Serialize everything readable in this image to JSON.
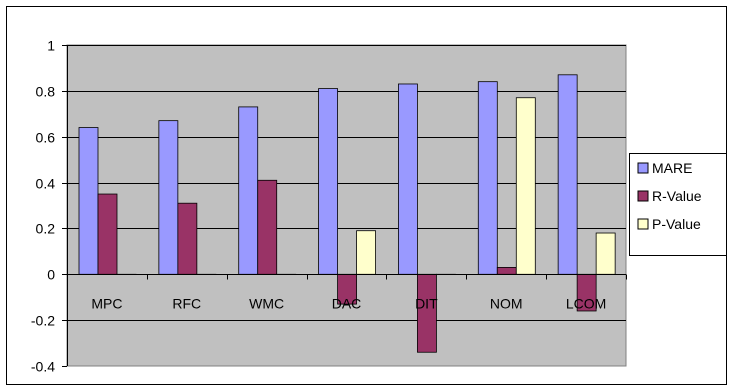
{
  "chart_data": {
    "type": "bar",
    "title": "",
    "xlabel": "",
    "ylabel": "",
    "categories": [
      "MPC",
      "RFC",
      "WMC",
      "DAC",
      "DIT",
      "NOM",
      "LCOM"
    ],
    "series": [
      {
        "name": "MARE",
        "color": "#9999ff",
        "values": [
          0.64,
          0.67,
          0.73,
          0.81,
          0.83,
          0.84,
          0.87
        ]
      },
      {
        "name": "R-Value",
        "color": "#993366",
        "values": [
          0.35,
          0.31,
          0.41,
          -0.13,
          -0.34,
          0.03,
          -0.16
        ]
      },
      {
        "name": "P-Value",
        "color": "#ffffcc",
        "values": [
          0.0,
          0.0,
          0.0,
          0.19,
          0.0,
          0.77,
          0.18
        ]
      }
    ],
    "ylim": [
      -0.4,
      1
    ],
    "yticks": [
      1,
      0.8,
      0.6,
      0.4,
      0.2,
      0,
      -0.2,
      -0.4
    ],
    "ytick_labels": [
      "1",
      "0.8",
      "0.6",
      "0.4",
      "0.2",
      "0",
      "-0.2",
      "-0.4"
    ],
    "grid": true,
    "plot_background": "#c0c0c0",
    "legend_position": "right"
  }
}
